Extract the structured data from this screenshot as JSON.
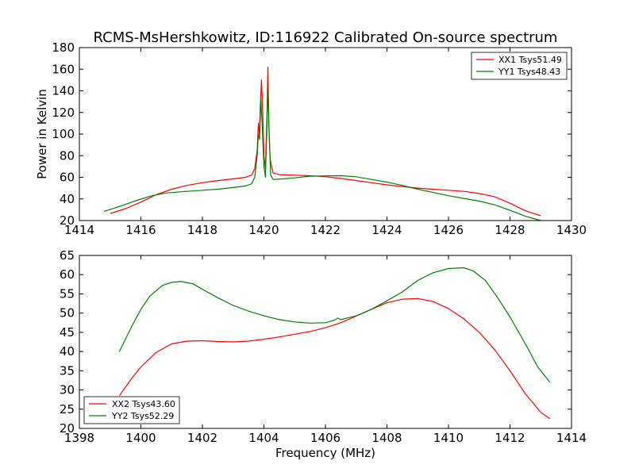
{
  "chart_data": [
    {
      "type": "line",
      "title": "RCMS-MsHershkowitz, ID:116922 Calibrated On-source spectrum",
      "xlabel": "",
      "ylabel": "Power in Kelvin",
      "xlim": [
        1414,
        1430
      ],
      "ylim": [
        20,
        180
      ],
      "xticks": [
        1414,
        1416,
        1418,
        1420,
        1422,
        1424,
        1426,
        1428,
        1430
      ],
      "yticks": [
        20,
        40,
        60,
        80,
        100,
        120,
        140,
        160,
        180
      ],
      "grid": false,
      "legend_position": "top-right",
      "series": [
        {
          "name": "XX1 Tsys51.49",
          "color": "#ff0000",
          "points": [
            [
              1415.0,
              26.5
            ],
            [
              1415.5,
              31
            ],
            [
              1416.0,
              37
            ],
            [
              1416.5,
              44
            ],
            [
              1417.0,
              49
            ],
            [
              1417.5,
              52.5
            ],
            [
              1418.0,
              55
            ],
            [
              1418.5,
              57
            ],
            [
              1419.0,
              58.5
            ],
            [
              1419.4,
              60
            ],
            [
              1419.6,
              62
            ],
            [
              1419.7,
              68
            ],
            [
              1419.78,
              85
            ],
            [
              1419.82,
              110
            ],
            [
              1419.85,
              100
            ],
            [
              1419.88,
              125
            ],
            [
              1419.92,
              150
            ],
            [
              1419.96,
              120
            ],
            [
              1420.0,
              80
            ],
            [
              1420.05,
              68
            ],
            [
              1420.1,
              120
            ],
            [
              1420.13,
              162
            ],
            [
              1420.16,
              110
            ],
            [
              1420.2,
              77
            ],
            [
              1420.25,
              70
            ],
            [
              1420.3,
              64
            ],
            [
              1420.5,
              62.5
            ],
            [
              1421.0,
              62
            ],
            [
              1421.5,
              61.5
            ],
            [
              1422.0,
              60.5
            ],
            [
              1422.5,
              59
            ],
            [
              1423.0,
              57
            ],
            [
              1423.5,
              55
            ],
            [
              1424.0,
              53
            ],
            [
              1424.5,
              51.5
            ],
            [
              1425.0,
              50
            ],
            [
              1425.5,
              49
            ],
            [
              1426.0,
              48
            ],
            [
              1426.5,
              47
            ],
            [
              1427.0,
              45
            ],
            [
              1427.5,
              42
            ],
            [
              1428.0,
              36
            ],
            [
              1428.5,
              29
            ],
            [
              1429.0,
              24.5
            ]
          ]
        },
        {
          "name": "YY1 Tsys48.43",
          "color": "#008000",
          "points": [
            [
              1414.8,
              28.5
            ],
            [
              1415.3,
              33
            ],
            [
              1415.8,
              38
            ],
            [
              1416.3,
              42.5
            ],
            [
              1416.8,
              45.5
            ],
            [
              1417.5,
              47
            ],
            [
              1418.0,
              48
            ],
            [
              1418.5,
              49
            ],
            [
              1419.0,
              50.5
            ],
            [
              1419.4,
              52
            ],
            [
              1419.6,
              54
            ],
            [
              1419.7,
              60
            ],
            [
              1419.78,
              80
            ],
            [
              1419.82,
              100
            ],
            [
              1419.86,
              95
            ],
            [
              1419.9,
              133
            ],
            [
              1419.94,
              110
            ],
            [
              1420.0,
              70
            ],
            [
              1420.05,
              60
            ],
            [
              1420.1,
              110
            ],
            [
              1420.13,
              147
            ],
            [
              1420.17,
              100
            ],
            [
              1420.22,
              62
            ],
            [
              1420.3,
              58
            ],
            [
              1420.6,
              58.5
            ],
            [
              1421.0,
              59.5
            ],
            [
              1421.5,
              61
            ],
            [
              1422.0,
              61.3
            ],
            [
              1422.5,
              61.5
            ],
            [
              1423.0,
              60.5
            ],
            [
              1423.5,
              58
            ],
            [
              1424.0,
              55.5
            ],
            [
              1424.5,
              52.5
            ],
            [
              1425.0,
              49
            ],
            [
              1425.5,
              46
            ],
            [
              1426.0,
              43
            ],
            [
              1426.5,
              40.5
            ],
            [
              1427.0,
              38
            ],
            [
              1427.5,
              34.5
            ],
            [
              1428.0,
              29.5
            ],
            [
              1428.5,
              24
            ],
            [
              1429.0,
              20
            ]
          ]
        }
      ]
    },
    {
      "type": "line",
      "title": "",
      "xlabel": "Frequency (MHz)",
      "ylabel": "",
      "xlim": [
        1398,
        1414
      ],
      "ylim": [
        20,
        65
      ],
      "xticks": [
        1398,
        1400,
        1402,
        1404,
        1406,
        1408,
        1410,
        1412,
        1414
      ],
      "yticks": [
        20,
        25,
        30,
        35,
        40,
        45,
        50,
        55,
        60,
        65
      ],
      "grid": false,
      "legend_position": "bottom-left",
      "series": [
        {
          "name": "XX2 Tsys43.60",
          "color": "#ff0000",
          "points": [
            [
              1399.3,
              28.5
            ],
            [
              1399.7,
              33
            ],
            [
              1400.0,
              36
            ],
            [
              1400.5,
              39.8
            ],
            [
              1401.0,
              42
            ],
            [
              1401.5,
              42.7
            ],
            [
              1402.0,
              42.8
            ],
            [
              1402.5,
              42.6
            ],
            [
              1403.0,
              42.5
            ],
            [
              1403.5,
              42.7
            ],
            [
              1404.0,
              43.2
            ],
            [
              1404.5,
              43.8
            ],
            [
              1405.0,
              44.5
            ],
            [
              1405.5,
              45.2
            ],
            [
              1406.0,
              46.2
            ],
            [
              1406.5,
              47.5
            ],
            [
              1407.0,
              49.2
            ],
            [
              1407.5,
              51
            ],
            [
              1408.0,
              52.7
            ],
            [
              1408.5,
              53.6
            ],
            [
              1409.0,
              53.8
            ],
            [
              1409.5,
              53
            ],
            [
              1410.0,
              51.2
            ],
            [
              1410.5,
              48.5
            ],
            [
              1411.0,
              45
            ],
            [
              1411.5,
              40.5
            ],
            [
              1412.0,
              35
            ],
            [
              1412.5,
              29
            ],
            [
              1413.0,
              24.2
            ],
            [
              1413.3,
              22.5
            ]
          ]
        },
        {
          "name": "YY2 Tsys52.29",
          "color": "#008000",
          "points": [
            [
              1399.3,
              40
            ],
            [
              1399.7,
              46.5
            ],
            [
              1400.0,
              51
            ],
            [
              1400.3,
              54.5
            ],
            [
              1400.7,
              57.2
            ],
            [
              1401.0,
              58
            ],
            [
              1401.3,
              58.2
            ],
            [
              1401.7,
              57.6
            ],
            [
              1402.0,
              56.2
            ],
            [
              1402.5,
              54
            ],
            [
              1403.0,
              52
            ],
            [
              1403.5,
              50.5
            ],
            [
              1404.0,
              49.3
            ],
            [
              1404.5,
              48.3
            ],
            [
              1405.0,
              47.7
            ],
            [
              1405.5,
              47.4
            ],
            [
              1406.0,
              47.5
            ],
            [
              1406.3,
              48.2
            ],
            [
              1406.4,
              48.7
            ],
            [
              1406.5,
              48.3
            ],
            [
              1407.0,
              49.3
            ],
            [
              1407.5,
              51
            ],
            [
              1408.0,
              53.2
            ],
            [
              1408.5,
              55.5
            ],
            [
              1409.0,
              58.5
            ],
            [
              1409.5,
              60.5
            ],
            [
              1410.0,
              61.6
            ],
            [
              1410.5,
              61.8
            ],
            [
              1410.8,
              61
            ],
            [
              1411.2,
              58.5
            ],
            [
              1411.6,
              54
            ],
            [
              1412.0,
              49
            ],
            [
              1412.5,
              42
            ],
            [
              1412.9,
              36
            ],
            [
              1413.3,
              32
            ]
          ]
        }
      ]
    }
  ]
}
